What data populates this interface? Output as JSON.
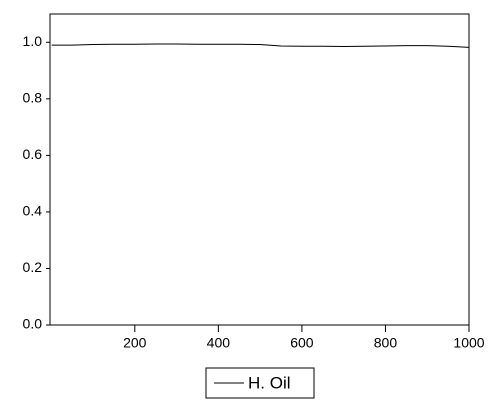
{
  "chart_data": {
    "type": "line",
    "x": [
      1,
      50,
      100,
      150,
      200,
      250,
      300,
      350,
      400,
      450,
      500,
      550,
      600,
      650,
      700,
      750,
      800,
      850,
      900,
      950,
      1000
    ],
    "series": [
      {
        "name": "H. Oil",
        "color": "#000000",
        "values": [
          0.99,
          0.99,
          0.992,
          0.993,
          0.993,
          0.994,
          0.994,
          0.993,
          0.993,
          0.993,
          0.992,
          0.987,
          0.986,
          0.986,
          0.985,
          0.986,
          0.987,
          0.988,
          0.988,
          0.986,
          0.982
        ]
      }
    ],
    "xlim": [
      -3,
      1000
    ],
    "xticks": [
      200,
      400,
      600,
      800,
      1000
    ],
    "ylim": [
      0,
      1.1
    ],
    "yticks": [
      {
        "value": 0,
        "label": "0.0"
      },
      0.2,
      0.4,
      0.6,
      0.8,
      {
        "value": 1,
        "label": "1.0"
      }
    ],
    "legend": "bottom"
  }
}
